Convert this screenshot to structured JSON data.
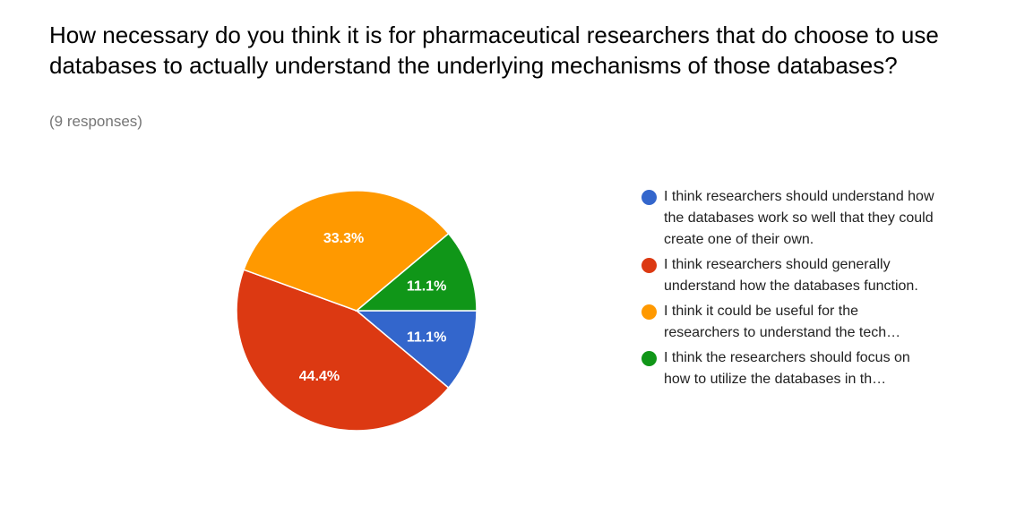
{
  "chart_data": {
    "type": "pie",
    "title": "How necessary do you think it is for pharmaceutical researchers that do choose to use databases to actually understand the underlying mechanisms of those databases?",
    "subtitle": "(9 responses)",
    "categories": [
      "I think researchers should understand how the databases work so well that they could create one of their own.",
      "I think researchers should generally understand how the databases function.",
      "I think it could be useful for the researchers to understand the tech…",
      "I think the researchers should focus on how to utilize the databases in th…"
    ],
    "values": [
      11.1,
      44.4,
      33.3,
      11.1
    ],
    "value_labels": [
      "11.1%",
      "44.4%",
      "33.3%",
      "11.1%"
    ],
    "colors": [
      "#3366cc",
      "#dc3912",
      "#ff9900",
      "#109618"
    ]
  }
}
